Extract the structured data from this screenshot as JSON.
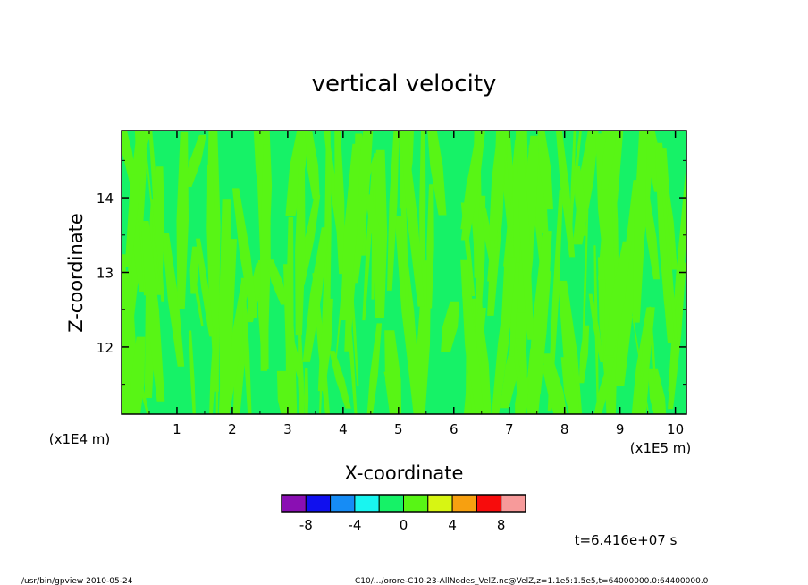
{
  "chart_data": {
    "type": "heatmap",
    "title": "vertical velocity",
    "xlabel": "X-coordinate",
    "ylabel": "Z-coordinate",
    "x_unit": "(x1E5 m)",
    "y_unit": "(x1E4 m)",
    "xlim": [
      0.0,
      10.2
    ],
    "ylim": [
      11.1,
      14.9
    ],
    "x_ticks": [
      "1",
      "2",
      "3",
      "4",
      "5",
      "6",
      "7",
      "8",
      "9",
      "10"
    ],
    "y_ticks": [
      "12",
      "13",
      "14"
    ],
    "x_tick_values": [
      1,
      2,
      3,
      4,
      5,
      6,
      7,
      8,
      9,
      10
    ],
    "y_tick_values": [
      12,
      13,
      14
    ],
    "field_levels": {
      "description_values": [
        "near 0 (-2 to 0)",
        "near 0 (0 to 2)"
      ],
      "dominant_bins": [
        -1,
        0
      ]
    },
    "colorbar": {
      "bins": [
        -10,
        -8,
        -6,
        -4,
        -2,
        0,
        2,
        4,
        6,
        8,
        10
      ],
      "colors": [
        "#8a0fb3",
        "#1010ee",
        "#168cf5",
        "#19f5f0",
        "#16f267",
        "#58f515",
        "#d7f513",
        "#f7a010",
        "#f70c0c",
        "#f79a9a"
      ],
      "tick_labels": [
        "-8",
        "-4",
        "0",
        "4",
        "8"
      ],
      "tick_values": [
        -8,
        -4,
        0,
        4,
        8
      ]
    },
    "time_label": "t=6.416e+07 s"
  },
  "footer": {
    "left": "/usr/bin/gpview   2010-05-24",
    "right": "C10/.../orore-C10-23-AllNodes_VelZ.nc@VelZ,z=1.1e5:1.5e5,t=64000000.0:64400000.0"
  }
}
